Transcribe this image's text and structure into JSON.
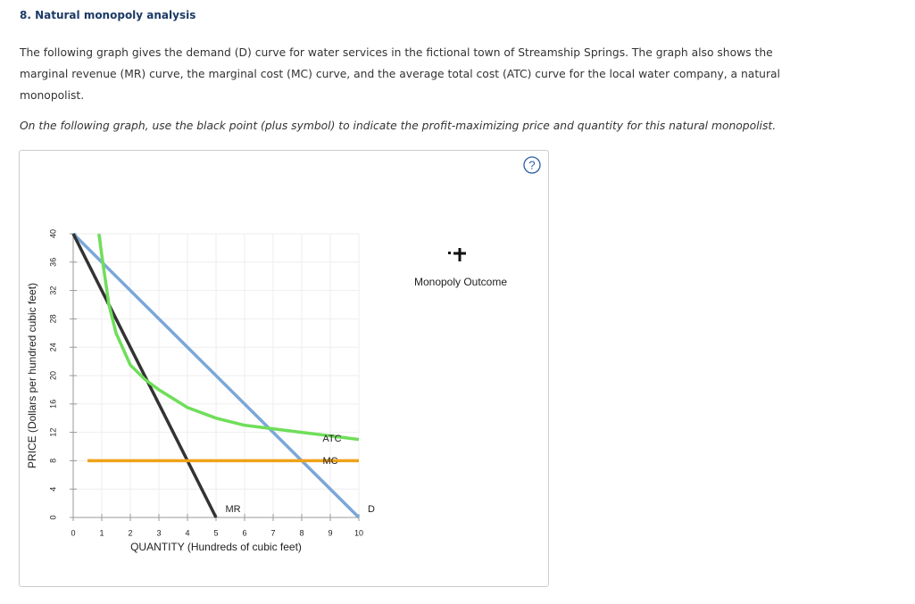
{
  "header": {
    "title": "8. Natural monopoly analysis"
  },
  "paragraph": "The following graph gives the demand (D) curve for water services in the fictional town of Streamship Springs. The graph also shows the marginal revenue (MR) curve, the marginal cost (MC) curve, and the average total cost (ATC) curve for the local water company, a natural monopolist.",
  "instruction": "On the following graph, use the black point (plus symbol) to indicate the profit-maximizing price and quantity for this natural monopolist.",
  "help_icon": "?",
  "legend_tool": {
    "label": "Monopoly Outcome"
  },
  "chart_data": {
    "type": "line",
    "x_label": "QUANTITY (Hundreds of cubic feet)",
    "y_label": "PRICE (Dollars per hundred cubic feet)",
    "xlim": [
      0,
      10
    ],
    "ylim": [
      0,
      40
    ],
    "xticks": [
      0,
      1,
      2,
      3,
      4,
      5,
      6,
      7,
      8,
      9,
      10
    ],
    "yticks": [
      0,
      4,
      8,
      12,
      16,
      20,
      24,
      28,
      32,
      36,
      40
    ],
    "grid": true,
    "series": [
      {
        "name": "D",
        "color": "#7aa7d9",
        "x": [
          0,
          10
        ],
        "values": [
          40,
          0
        ]
      },
      {
        "name": "MR",
        "color": "#333333",
        "x": [
          0,
          5
        ],
        "values": [
          40,
          0
        ]
      },
      {
        "name": "ATC",
        "color": "#6fde5a",
        "x": [
          0.9,
          1,
          1.25,
          1.5,
          2,
          2.5,
          3,
          4,
          5,
          6,
          7,
          8,
          9,
          10
        ],
        "values": [
          40,
          37,
          30,
          26,
          21.5,
          19.5,
          18,
          15.5,
          14,
          13,
          12.5,
          12,
          11.5,
          11
        ]
      },
      {
        "name": "MC",
        "color": "#f0a21a",
        "x": [
          0.5,
          10
        ],
        "values": [
          8,
          8
        ]
      }
    ]
  }
}
